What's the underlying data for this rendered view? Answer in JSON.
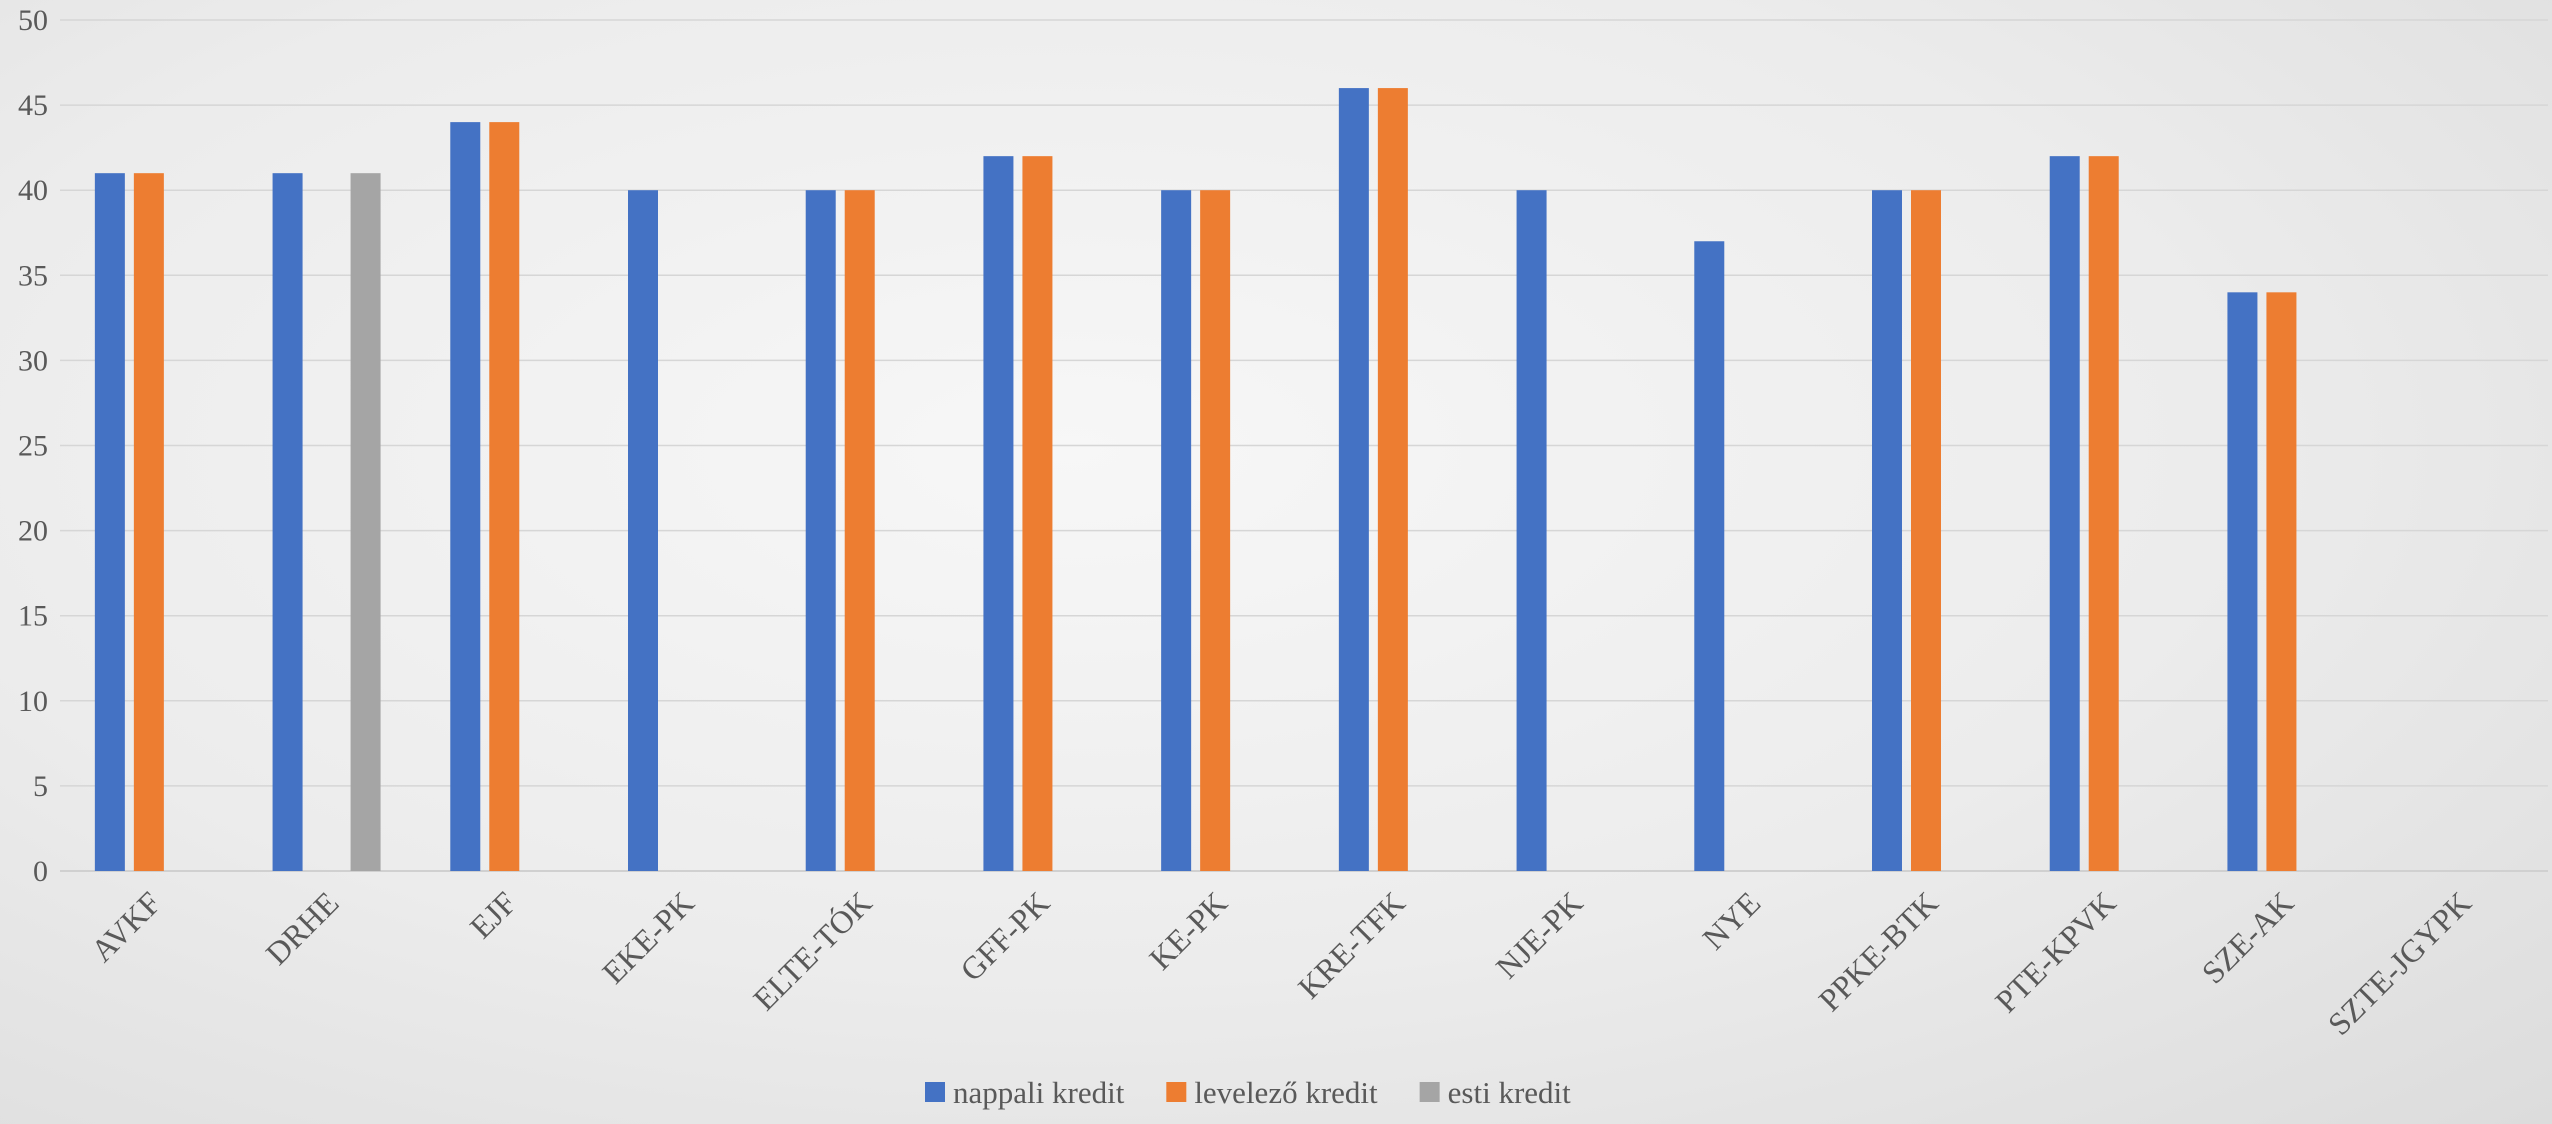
{
  "chart_data": {
    "type": "bar",
    "categories": [
      "AVKF",
      "DRHE",
      "EJF",
      "EKE-PK",
      "ELTE-TÓK",
      "GFF-PK",
      "KE-PK",
      "KRE-TFK",
      "NJE-PK",
      "NYE",
      "PPKE-BTK",
      "PTE-KPVK",
      "SZE-AK",
      "SZTE-JGYPK"
    ],
    "series": [
      {
        "name": "nappali kredit",
        "color": "#4472C4",
        "values": [
          41,
          41,
          44,
          40,
          40,
          42,
          40,
          46,
          40,
          37,
          40,
          42,
          34,
          null
        ]
      },
      {
        "name": "levelező kredit",
        "color": "#ED7D31",
        "values": [
          41,
          null,
          44,
          null,
          40,
          42,
          40,
          46,
          null,
          null,
          40,
          42,
          34,
          null
        ]
      },
      {
        "name": "esti kredit",
        "color": "#A5A5A5",
        "values": [
          null,
          41,
          null,
          null,
          null,
          null,
          null,
          null,
          null,
          null,
          null,
          null,
          null,
          null
        ]
      }
    ],
    "y_ticks": [
      "0",
      "5",
      "10",
      "15",
      "20",
      "25",
      "30",
      "35",
      "40",
      "45",
      "50"
    ],
    "ylim": [
      0,
      50
    ],
    "grid": true,
    "legend": "bottom-center"
  }
}
